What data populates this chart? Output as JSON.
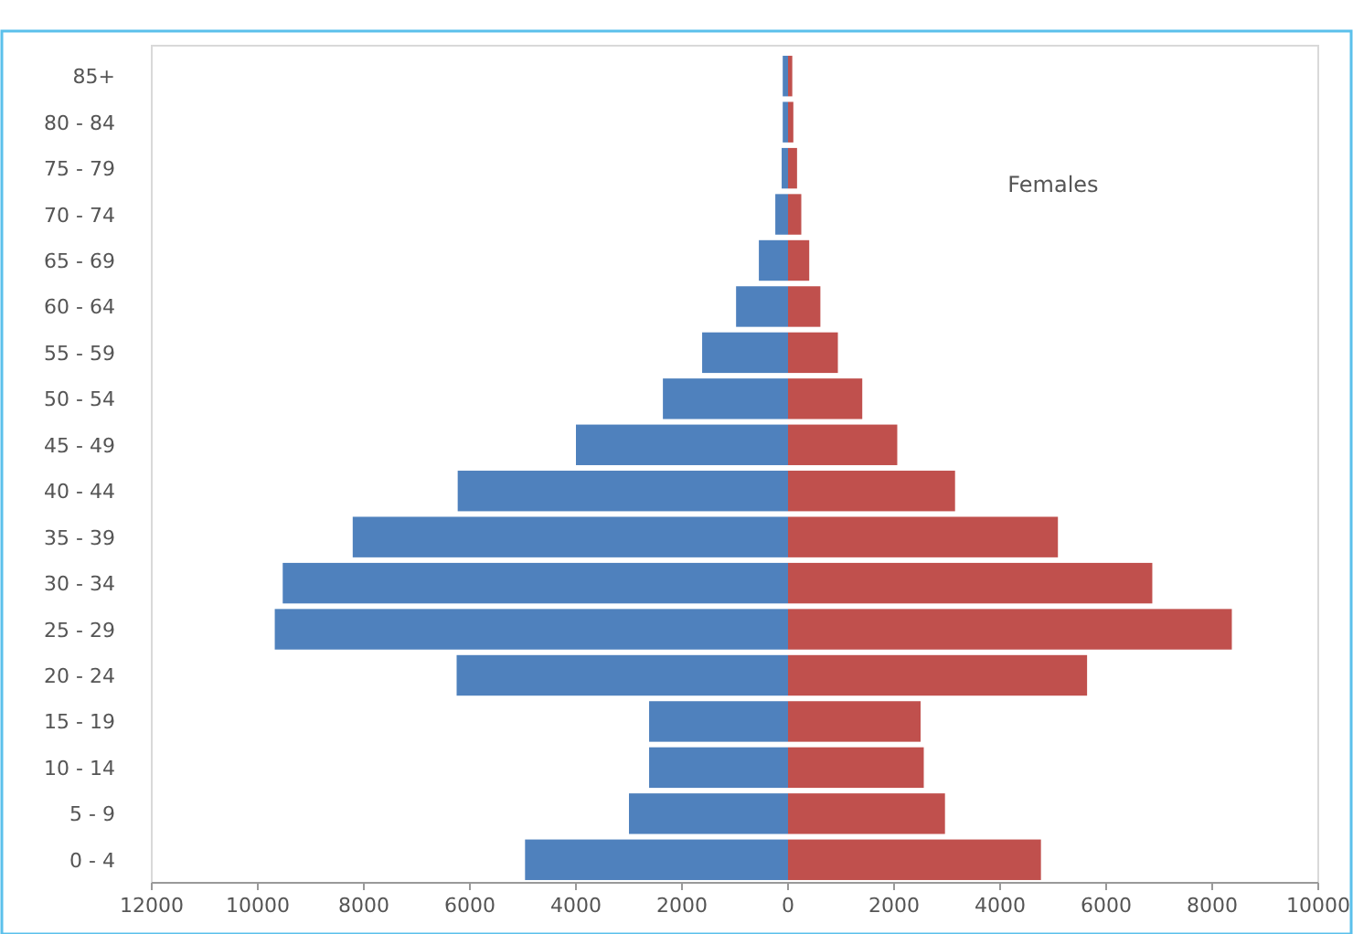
{
  "chart_data": {
    "type": "bar",
    "orientation": "horizontal",
    "stacked": true,
    "categories": [
      "85+",
      "80 - 84",
      "75 - 79",
      "70 - 74",
      "65 - 69",
      "60 - 64",
      "55 - 59",
      "50 - 54",
      "45 - 49",
      "40 - 44",
      "35 - 39",
      "30 - 34",
      "25 - 29",
      "20 - 24",
      "15 - 19",
      "10 - 14",
      "5 - 9",
      "0 - 4"
    ],
    "series": [
      {
        "color": "#4f81bd",
        "values": [
          -100,
          -100,
          -120,
          -240,
          -550,
          -980,
          -1620,
          -2360,
          -4000,
          -6230,
          -8210,
          -9530,
          -9680,
          -6250,
          -2620,
          -2620,
          -3000,
          -4960
        ]
      },
      {
        "name": "Females",
        "color": "#c0504d",
        "values": [
          80,
          100,
          170,
          250,
          400,
          610,
          940,
          1400,
          2060,
          3150,
          5090,
          6870,
          8370,
          5640,
          2500,
          2560,
          2960,
          4770
        ]
      }
    ],
    "xlim": [
      -12000,
      10000
    ],
    "xticks": [
      {
        "value": -12000,
        "label": "12000"
      },
      {
        "value": -10000,
        "label": "10000"
      },
      {
        "value": -8000,
        "label": "8000"
      },
      {
        "value": -6000,
        "label": "6000"
      },
      {
        "value": -4000,
        "label": "4000"
      },
      {
        "value": -2000,
        "label": "2000"
      },
      0,
      2000,
      4000,
      6000,
      8000,
      10000
    ],
    "tick_labels": true
  }
}
